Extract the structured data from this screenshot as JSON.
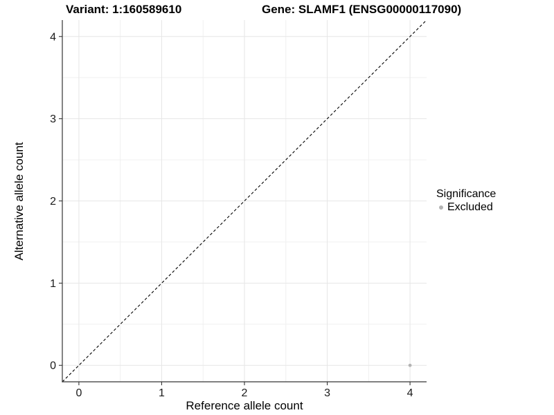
{
  "titles": {
    "variant": "Variant: 1:160589610",
    "gene": "Gene: SLAMF1 (ENSG00000117090)"
  },
  "chart_data": {
    "type": "scatter",
    "title_left": "Variant: 1:160589610",
    "title_right": "Gene: SLAMF1 (ENSG00000117090)",
    "xlabel": "Reference allele count",
    "ylabel": "Alternative allele count",
    "xlim": [
      -0.2,
      4.2
    ],
    "ylim": [
      -0.2,
      4.2
    ],
    "x_ticks": [
      0,
      1,
      2,
      3,
      4
    ],
    "y_ticks": [
      0,
      1,
      2,
      3,
      4
    ],
    "x_minor_gridlines": [
      0.5,
      1.5,
      2.5,
      3.5
    ],
    "y_minor_gridlines": [
      0.5,
      1.5,
      2.5,
      3.5
    ],
    "grid": true,
    "legend_position": "right",
    "reference_line": {
      "type": "identity",
      "slope": 1,
      "intercept": 0,
      "linestyle": "dashed",
      "color": "#000000"
    },
    "series": [
      {
        "name": "Excluded",
        "color": "#b3b3b3",
        "points": [
          {
            "x": 4,
            "y": 0
          }
        ]
      }
    ]
  },
  "legend": {
    "title": "Significance",
    "items": [
      {
        "label": "Excluded",
        "color": "#b3b3b3"
      }
    ]
  },
  "colors": {
    "background": "#ffffff",
    "axis_line": "#333333",
    "tick_mark": "#333333",
    "tick_label": "#1a1a1a",
    "grid_major": "#e6e6e6",
    "grid_minor": "#f0f0f0",
    "point": "#b3b3b3",
    "reference_line": "#000000"
  }
}
